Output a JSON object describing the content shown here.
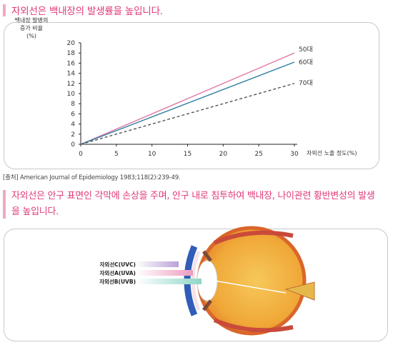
{
  "heading1": "자외선은 백내장의 발생률을 높입니다.",
  "chart_data": {
    "type": "line",
    "title": "",
    "ylabel": "백내장 발병의\n증가 비율\n(%)",
    "xlabel": "자외선 노출 정도(%)",
    "xlim": [
      0,
      30
    ],
    "ylim": [
      0,
      20
    ],
    "xticks": [
      0,
      5,
      10,
      15,
      20,
      25,
      30
    ],
    "yticks": [
      0,
      2,
      4,
      6,
      8,
      10,
      12,
      14,
      16,
      18,
      20
    ],
    "series": [
      {
        "name": "50대",
        "x": [
          0,
          30
        ],
        "y": [
          0,
          18
        ],
        "color": "#e07aa8",
        "dash": false
      },
      {
        "name": "60대",
        "x": [
          0,
          30
        ],
        "y": [
          0,
          16.2
        ],
        "color": "#2f7fa0",
        "dash": false
      },
      {
        "name": "70대",
        "x": [
          0,
          30
        ],
        "y": [
          0,
          12
        ],
        "color": "#555555",
        "dash": true
      }
    ]
  },
  "source": "[출처] American Journal of Epidemiology 1983;118(2):239-49.",
  "heading2": "자외선은 안구 표면인 각막에 손상을 주며, 안구 내로 침투하여 백내장, 나이관련 황반변성의 발생을 높입니다.",
  "diagram": {
    "uv_labels": [
      "자외선C(UVC)",
      "자외선A(UVA)",
      "자외선B(UVB)"
    ],
    "uv_colors": [
      "#b9a2d6",
      "#ee9cc0",
      "#8fd6c8"
    ]
  }
}
